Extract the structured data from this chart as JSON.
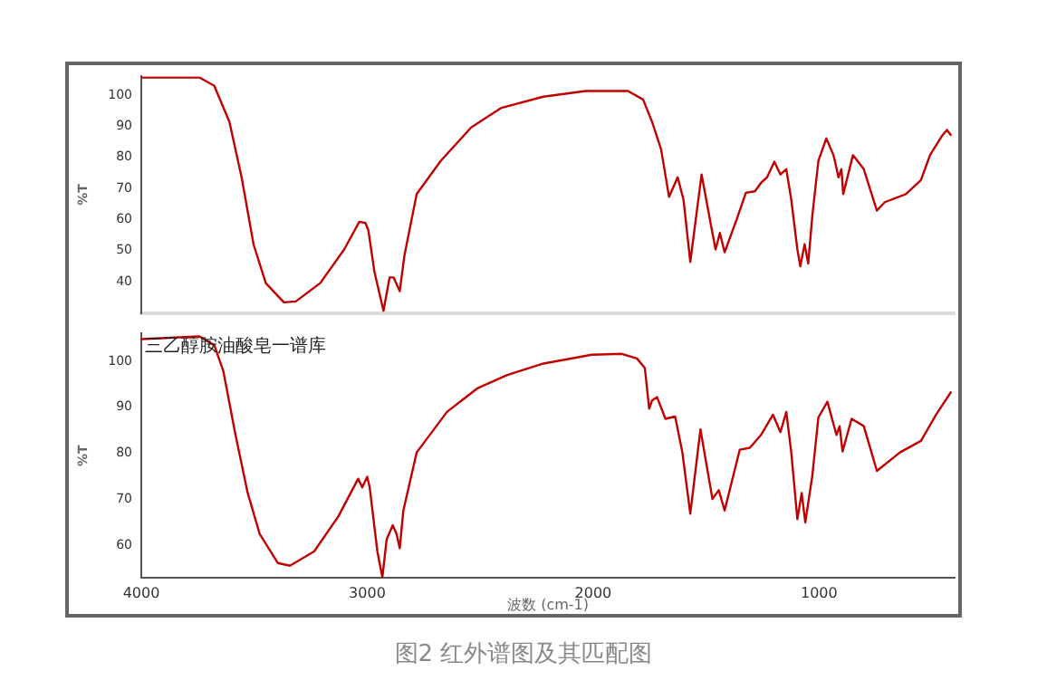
{
  "chart_data": [
    {
      "type": "line",
      "ylabel": "%T",
      "xlim": [
        4000,
        400
      ],
      "xticks": [
        4000,
        3000,
        2000,
        1000
      ],
      "ylim": [
        30,
        106
      ],
      "yticks": [
        40,
        50,
        60,
        70,
        80,
        90,
        100
      ],
      "tick_labels": "y",
      "grid": false,
      "legend": false,
      "marker": "none",
      "series": [
        {
          "color": "#c00000",
          "x": [
            4000,
            3743,
            3677,
            3610,
            3556,
            3503,
            3449,
            3369,
            3316,
            3208,
            3102,
            3035,
            3008,
            2995,
            2968,
            2928,
            2901,
            2883,
            2856,
            2835,
            2781,
            2674,
            2540,
            2406,
            2220,
            2033,
            1846,
            1779,
            1739,
            1699,
            1664,
            1626,
            1600,
            1570,
            1520,
            1472,
            1458,
            1439,
            1418,
            1364,
            1324,
            1284,
            1257,
            1230,
            1198,
            1171,
            1145,
            1123,
            1096,
            1083,
            1064,
            1048,
            1030,
            1003,
            968,
            936,
            914,
            901,
            893,
            850,
            802,
            744,
            709,
            616,
            549,
            509,
            455,
            434,
            415
          ],
          "values": [
            105.7,
            105.7,
            103,
            91.4,
            73.6,
            52,
            39.6,
            33.4,
            33.7,
            39.6,
            50.4,
            59.3,
            58.9,
            56.6,
            43.2,
            30.7,
            41.4,
            41.4,
            37,
            48.6,
            68.2,
            78.9,
            89.6,
            95.9,
            99.5,
            101.3,
            101.3,
            98.6,
            91.4,
            82.5,
            67.3,
            73.6,
            66.4,
            46.4,
            74.5,
            55.7,
            50.4,
            55.7,
            49.5,
            60.2,
            68.6,
            69.1,
            71.8,
            73.6,
            78.6,
            74.5,
            76.2,
            66.4,
            50.4,
            45,
            52.1,
            45.9,
            61.1,
            78.9,
            86.1,
            80.7,
            73.6,
            76.2,
            68.2,
            80.7,
            76.2,
            62.9,
            65.6,
            68.2,
            72.7,
            80.7,
            87,
            88.8,
            87
          ]
        }
      ]
    },
    {
      "type": "line",
      "ylabel": "%T",
      "xlabel": "波数 (cm-1)",
      "xlim": [
        4000,
        400
      ],
      "xticks": [
        4000,
        3000,
        2000,
        1000
      ],
      "ylim": [
        53,
        106
      ],
      "yticks": [
        60,
        70,
        80,
        90,
        100
      ],
      "grid": false,
      "legend": false,
      "marker": "none",
      "annotations": [
        "三乙醇胺油酸皂一谱库",
        "图2 红外谱图及其匹配图"
      ],
      "series": [
        {
          "color": "#c00000",
          "x": [
            4000,
            3743,
            3677,
            3637,
            3583,
            3529,
            3476,
            3396,
            3342,
            3235,
            3128,
            3040,
            3022,
            3000,
            2989,
            2955,
            2933,
            2914,
            2887,
            2870,
            2856,
            2840,
            2781,
            2647,
            2513,
            2380,
            2220,
            2006,
            1873,
            1806,
            1771,
            1752,
            1739,
            1717,
            1680,
            1637,
            1605,
            1570,
            1525,
            1472,
            1444,
            1418,
            1351,
            1306,
            1257,
            1204,
            1171,
            1145,
            1123,
            1096,
            1077,
            1061,
            1030,
            1003,
            963,
            923,
            909,
            896,
            856,
            802,
            744,
            642,
            549,
            482,
            415
          ],
          "values": [
            104.8,
            105.4,
            103.5,
            97.9,
            84,
            71.4,
            62.5,
            56.2,
            55.6,
            58.7,
            66.3,
            74.5,
            72.6,
            74.9,
            72.6,
            58.7,
            53.1,
            61.3,
            64.4,
            62.5,
            59.4,
            67.6,
            80.2,
            89,
            94.1,
            97,
            99.5,
            101.4,
            101.6,
            100.6,
            98.5,
            89.7,
            91.5,
            92.2,
            87.5,
            88,
            80.2,
            66.9,
            85.2,
            70.1,
            72,
            67.6,
            80.8,
            81.2,
            84,
            88.4,
            84.6,
            89,
            80.2,
            65.7,
            71.4,
            65,
            75.1,
            87.8,
            91.2,
            84,
            85.9,
            80.4,
            87.5,
            85.9,
            76.2,
            80.2,
            82.7,
            88.4,
            93.4
          ]
        }
      ]
    }
  ]
}
